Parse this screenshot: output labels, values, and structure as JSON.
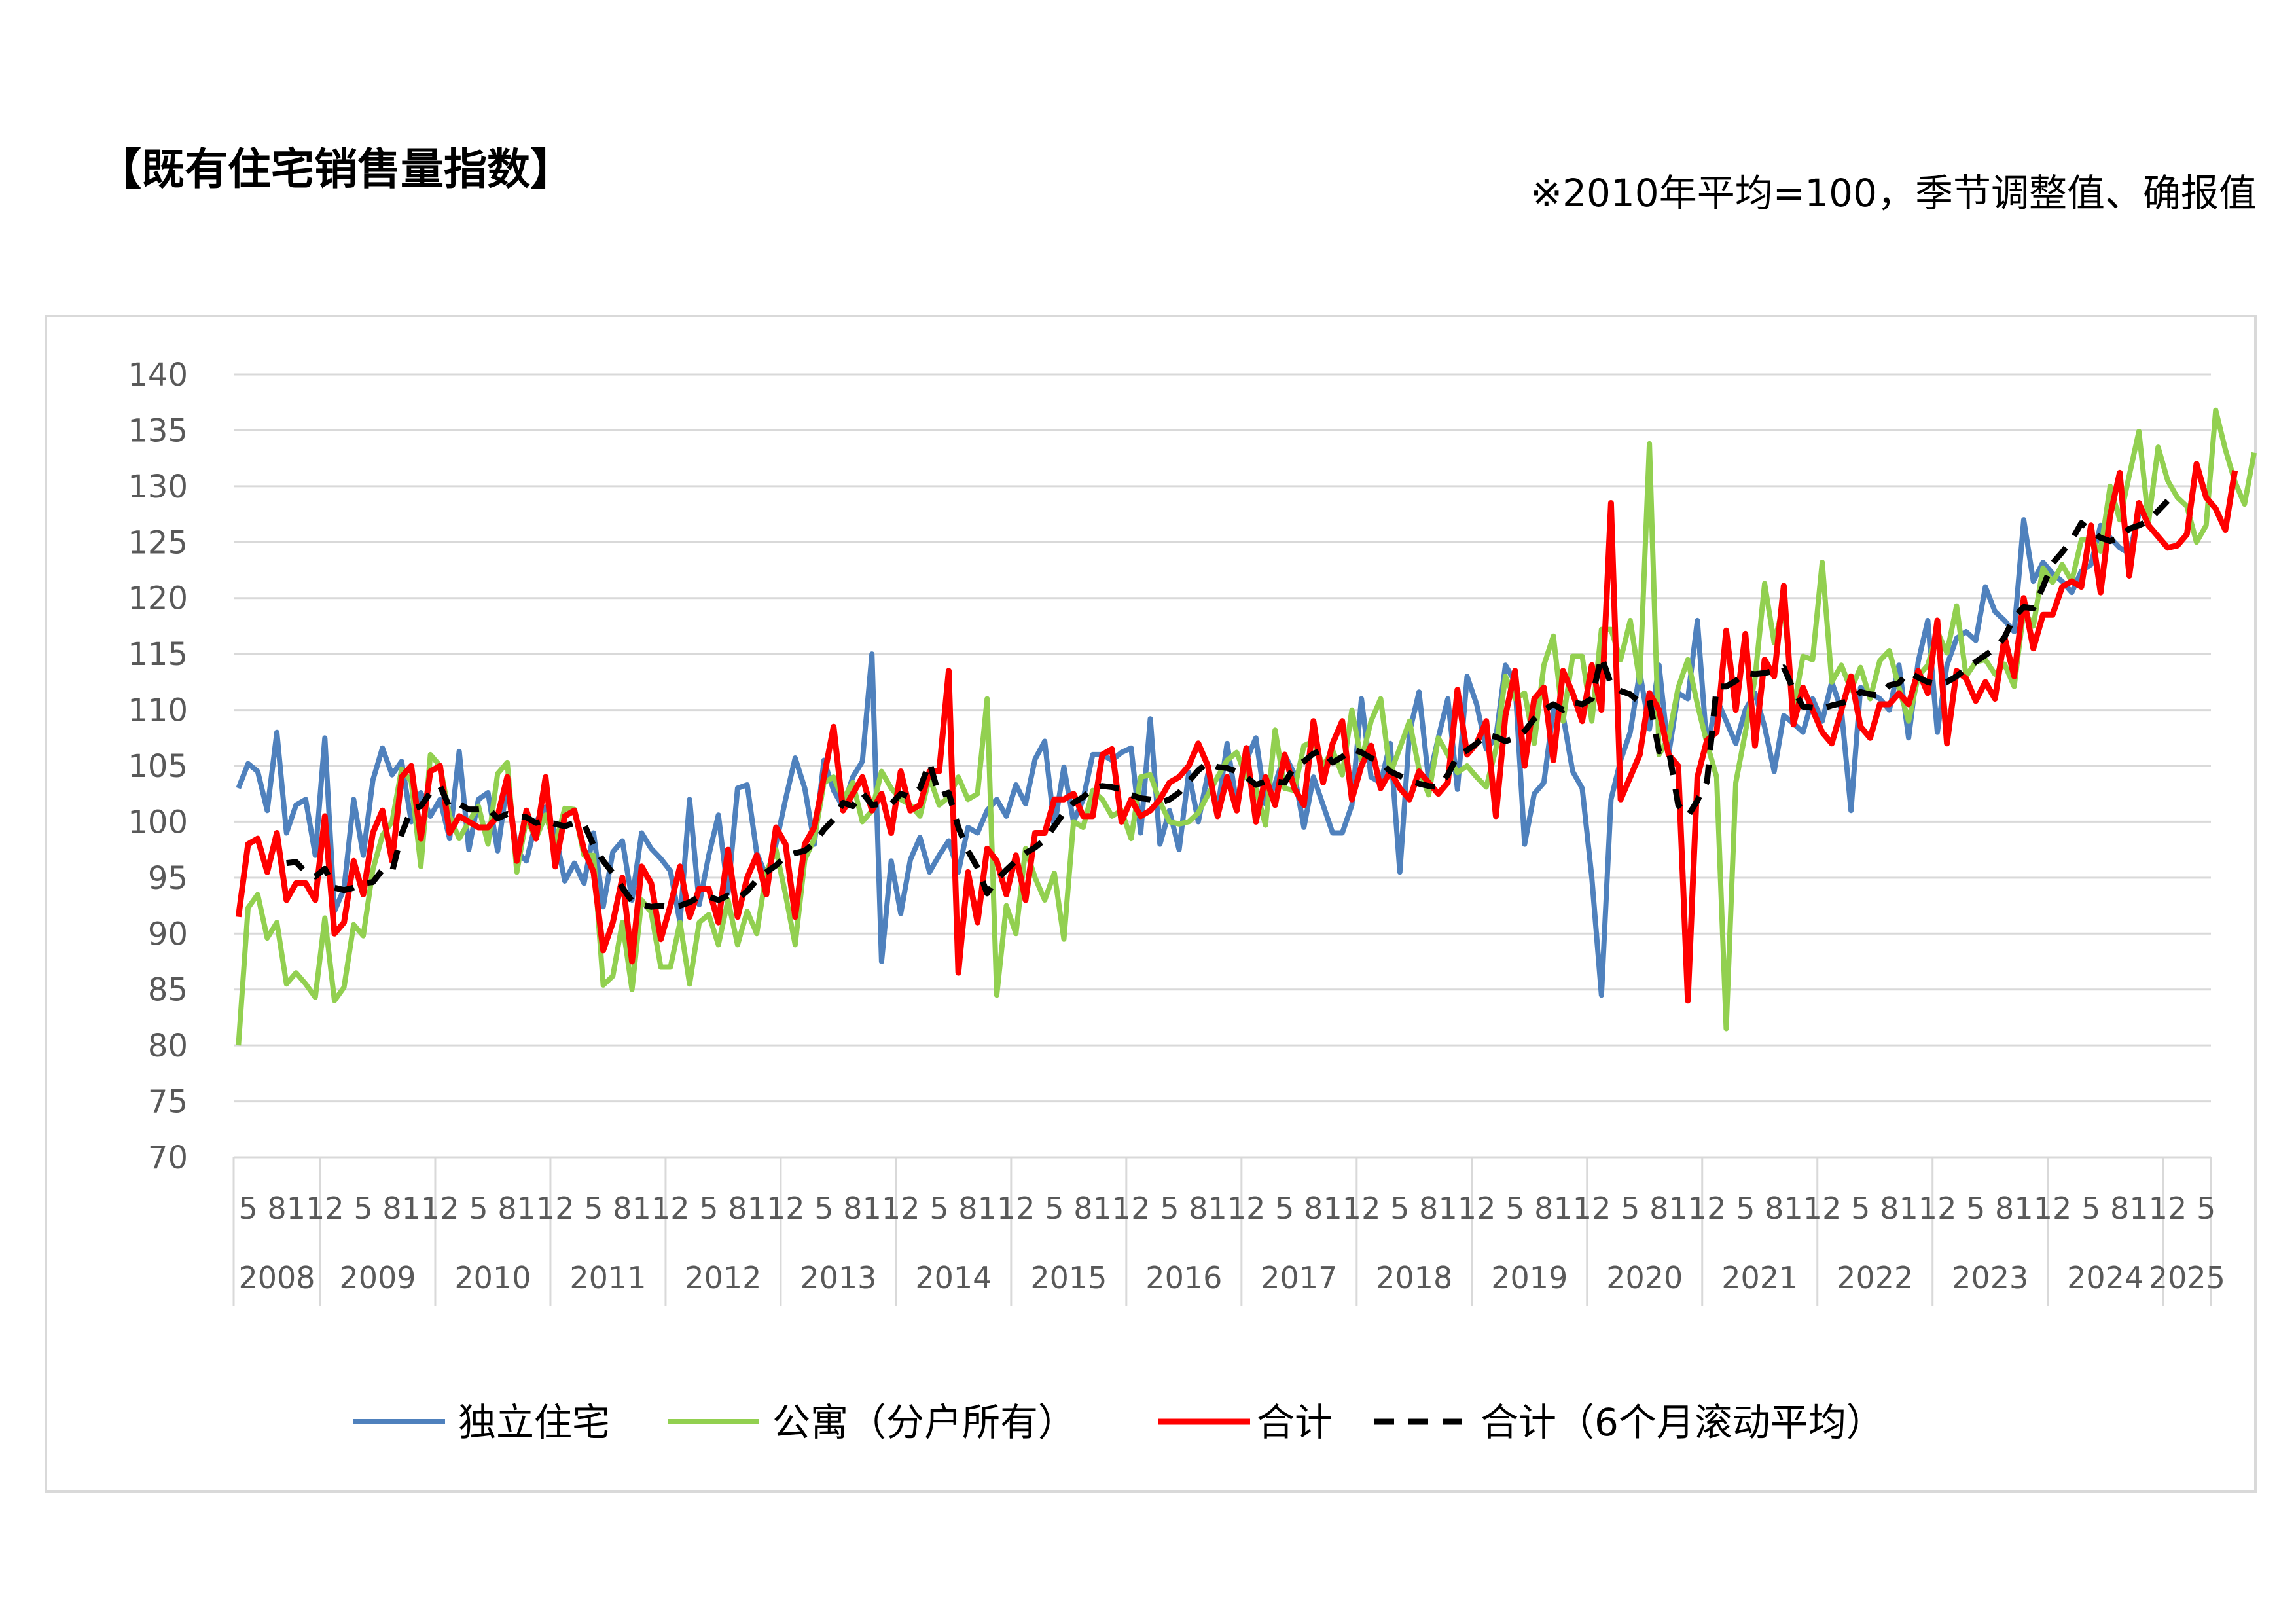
{
  "title": "【既有住宅销售量指数】",
  "note": "※2010年平均=100，季节调整值、确报值",
  "chart_data": {
    "type": "line",
    "y_ticks": [
      70,
      75,
      80,
      85,
      90,
      95,
      100,
      105,
      110,
      115,
      120,
      125,
      130,
      135,
      140
    ],
    "ylim": [
      70,
      140
    ],
    "year_labels": [
      "2008",
      "2009",
      "2010",
      "2011",
      "2012",
      "2013",
      "2014",
      "2015",
      "2016",
      "2017",
      "2018",
      "2019",
      "2020",
      "2021",
      "2022",
      "2023",
      "2024",
      "2025"
    ],
    "month_tick_labels": [
      "2",
      "5",
      "8",
      "11"
    ],
    "month_tick_labels_2025": [
      "2",
      "5"
    ],
    "x_start": "2008-04",
    "x_end": "2025-05",
    "grid": true,
    "legend_position": "bottom",
    "series": [
      {
        "name": "独立住宅",
        "color": "#4f81bd",
        "width": 8,
        "dash": "",
        "values": [
          103,
          105.2,
          104.5,
          101,
          108,
          99,
          101.5,
          102,
          97,
          107.5,
          92,
          94,
          102,
          97,
          103.7,
          106.6,
          104.2,
          105.4,
          100,
          102.6,
          100.5,
          102,
          98.5,
          106.3,
          97.5,
          102,
          102.6,
          97.4,
          103.5,
          97.3,
          96.5,
          100,
          101.3,
          99,
          94.7,
          96.3,
          94.5,
          99,
          92.4,
          97.3,
          98.3,
          93,
          99,
          97.6,
          96.7,
          95.6,
          91,
          102,
          92.6,
          97,
          100.6,
          93.6,
          103,
          103.3,
          97.2,
          95.1,
          98,
          102,
          105.7,
          103,
          98,
          105.5,
          102.8,
          101.3,
          104,
          105.4,
          115,
          87.5,
          96.5,
          91.8,
          96.6,
          98.6,
          95.5,
          97,
          98.3,
          95.5,
          99.5,
          99,
          101,
          102,
          100.5,
          103.3,
          101.6,
          105.6,
          107.2,
          99.5,
          104.9,
          100,
          102,
          106,
          106,
          105.5,
          106.2,
          106.6,
          99,
          109.2,
          98,
          101,
          97.5,
          104.4,
          100,
          104.3,
          101,
          107,
          101.6,
          105.5,
          107.5,
          101.6,
          103.4,
          106,
          104.3,
          99.5,
          104,
          101.5,
          99,
          99,
          101.5,
          111,
          104,
          103.5,
          107,
          95.5,
          108,
          111.6,
          103.7,
          107.5,
          111,
          102.9,
          113,
          110.5,
          106.5,
          107.5,
          114,
          112.5,
          98,
          102.5,
          103.5,
          110,
          109.5,
          104.5,
          103,
          95,
          84.5,
          102,
          105.5,
          108,
          113.4,
          108.3,
          114,
          106,
          111.5,
          111,
          118,
          106.5,
          111,
          109,
          107,
          110,
          111.5,
          108.5,
          104.5,
          109.5,
          108.8,
          108,
          111,
          109,
          112.5,
          110,
          101,
          112,
          111.5,
          111,
          110,
          114,
          107.5,
          114.3,
          118,
          108,
          114,
          116.4,
          117,
          116.2,
          121,
          118.8,
          118,
          117,
          127,
          121.5,
          123.2,
          122.2,
          121.5,
          120.5,
          122.4,
          123,
          126.5,
          125.4,
          124.5,
          124,
          127.5
        ]
      },
      {
        "name": "公寓（分户所有）",
        "color": "#92d050",
        "width": 8,
        "dash": "",
        "values": [
          80,
          92.3,
          93.5,
          89.6,
          91,
          85.5,
          86.5,
          85.5,
          84.3,
          91.4,
          84,
          85.2,
          90.8,
          89.8,
          95.7,
          98.8,
          100,
          104.7,
          103.6,
          96,
          106,
          105,
          100.5,
          98.5,
          100,
          101.4,
          98,
          104.3,
          105.3,
          95.5,
          100.3,
          98.5,
          100.6,
          98,
          101.2,
          101.1,
          97,
          97,
          85.4,
          86.2,
          91,
          85,
          93,
          91.9,
          87,
          87,
          91,
          85.5,
          91,
          91.7,
          89,
          93,
          89,
          92,
          90,
          95.5,
          97.5,
          93.5,
          89,
          96.6,
          98.5,
          103.5,
          104,
          102,
          103.5,
          100,
          101,
          104.5,
          103,
          102,
          101.5,
          100.5,
          104,
          101.5,
          102.2,
          104,
          102,
          102.5,
          111,
          84.5,
          92.5,
          90,
          97.6,
          95,
          93,
          95.4,
          89.5,
          100,
          99.5,
          102.8,
          102,
          100.5,
          101,
          98.5,
          104,
          104.2,
          101.8,
          100,
          99.8,
          100,
          100.8,
          102.4,
          104,
          105.5,
          106.2,
          104,
          103,
          99.7,
          108.2,
          103,
          102.8,
          106.8,
          107.2,
          105,
          106.4,
          104.2,
          110,
          105.5,
          109,
          111,
          104.3,
          106.6,
          109,
          104.7,
          102.4,
          107.5,
          106,
          104.4,
          105,
          104,
          103.1,
          106.5,
          113,
          111,
          111.5,
          107,
          114,
          116.6,
          109,
          114.8,
          114.8,
          109,
          117.2,
          117.2,
          114.5,
          118,
          112.5,
          133.8,
          106,
          107.5,
          112,
          114.5,
          110.5,
          107,
          104,
          81.5,
          103.5,
          108,
          112.8,
          121.3,
          116,
          119.5,
          110,
          114.8,
          114.5,
          123.2,
          112.5,
          114,
          111.8,
          113.8,
          111,
          114.4,
          115.3,
          112,
          109,
          113,
          114,
          117,
          115.1,
          119.3,
          113,
          114.3,
          114.5,
          113.2,
          114.1,
          112.1,
          118.9,
          117.5,
          122.7,
          121.4,
          123,
          121.5,
          125.2,
          125.3,
          124.2,
          130,
          127,
          131,
          134.9,
          126.8,
          133.5,
          130.5,
          129,
          128.2,
          125,
          126.5,
          136.8,
          133.3,
          130.4,
          128.4,
          133
        ]
      },
      {
        "name": "合计",
        "color": "#ff0000",
        "width": 9,
        "dash": "",
        "values": [
          91.5,
          98,
          98.5,
          95.5,
          99,
          93,
          94.5,
          94.5,
          93,
          100.5,
          90,
          91,
          96.5,
          93.5,
          99,
          101,
          96.5,
          104,
          105,
          98.5,
          104.5,
          105,
          99,
          100.5,
          100,
          99.5,
          99.5,
          100.5,
          104,
          96.5,
          101,
          98.5,
          104,
          96,
          100.5,
          101,
          97.5,
          95.5,
          88.5,
          91,
          95,
          87.5,
          96,
          94.5,
          89.5,
          92.5,
          96,
          91.5,
          94,
          94,
          91,
          97.5,
          91.5,
          95,
          97,
          93.5,
          99.5,
          98,
          91.5,
          98,
          99.5,
          104,
          108.5,
          101,
          102.5,
          104,
          101,
          102.5,
          99,
          104.5,
          101,
          101.5,
          104.5,
          104.5,
          113.5,
          86.5,
          95.5,
          91,
          97.6,
          96.5,
          93.5,
          97,
          93,
          99,
          99,
          102,
          102,
          102.5,
          100.5,
          100.5,
          106,
          106.5,
          100,
          102,
          100.5,
          101,
          102,
          103.5,
          104,
          105,
          107,
          105,
          100.5,
          104,
          101,
          106.6,
          100,
          104,
          101.5,
          106,
          103,
          101.5,
          109,
          103.5,
          107,
          109,
          102,
          105,
          106.8,
          103,
          104.5,
          103,
          102,
          104.5,
          103.5,
          102.5,
          103.5,
          111.8,
          106,
          107,
          109,
          100.5,
          109.5,
          113.5,
          105,
          111,
          112,
          105.5,
          113.5,
          111.5,
          109,
          114,
          110,
          128.5,
          102,
          104,
          106,
          111.5,
          110,
          106,
          105,
          84,
          104,
          107.3,
          108,
          117.1,
          110,
          116.8,
          106.8,
          114.5,
          113,
          121.1,
          108.7,
          112,
          110,
          108,
          107,
          110,
          113,
          108.5,
          107.5,
          110.5,
          110.5,
          111.5,
          110.5,
          113.5,
          111.5,
          118,
          107,
          113.5,
          112.8,
          110.8,
          112.5,
          111,
          116.5,
          113,
          120,
          115.5,
          118.5,
          118.5,
          121,
          121.5,
          121,
          126.5,
          120.5,
          127.4,
          131.2,
          122,
          128.5,
          126.5,
          125.5,
          124.5,
          124.7,
          125.7,
          132,
          129,
          128,
          126.1,
          131.4
        ]
      },
      {
        "name": "合计（6个月滚动平均）",
        "color": "#000000",
        "width": 9,
        "dash": "30,22",
        "values": [
          null,
          null,
          null,
          null,
          null,
          96.3,
          96.4,
          95.5,
          95.1,
          95.8,
          94.1,
          93.9,
          94.1,
          94.5,
          94.6,
          95.7,
          95.5,
          98.9,
          101.1,
          101.4,
          102.6,
          103.2,
          101.3,
          101.6,
          101.1,
          101.1,
          101.2,
          100.3,
          100.7,
          100.5,
          100.4,
          99.9,
          100.1,
          99.8,
          99.6,
          99.9,
          99.8,
          97.9,
          96.5,
          95.4,
          94.1,
          92.9,
          92.6,
          92.4,
          92.5,
          92.4,
          92.5,
          92.8,
          93.3,
          93.3,
          93,
          93.4,
          93.1,
          93.8,
          94.8,
          95.5,
          96.1,
          96.9,
          97.2,
          97.4,
          98.1,
          99.3,
          100.2,
          101.7,
          101.4,
          102.6,
          101.5,
          101.6,
          101.6,
          102.5,
          102.2,
          103,
          105.3,
          102.3,
          102.6,
          99.5,
          97.4,
          95.9,
          93.6,
          94.8,
          95.7,
          96.5,
          97.2,
          97.7,
          98.4,
          99.6,
          100.8,
          101.7,
          102.2,
          103,
          103.2,
          103.1,
          102.9,
          102.4,
          102.1,
          102,
          101.7,
          102,
          102.6,
          103.6,
          104.6,
          105.3,
          104.9,
          104.8,
          104.5,
          104,
          103.3,
          103.6,
          103.6,
          103.5,
          104.9,
          105.4,
          106.1,
          106.4,
          105.3,
          105.8,
          106.5,
          106.2,
          105.7,
          105.3,
          104.5,
          104.1,
          103.7,
          103.4,
          103.2,
          103.1,
          104.2,
          105.9,
          106.4,
          107,
          107.8,
          107.6,
          107.2,
          107.5,
          108.1,
          109.2,
          110,
          110.5,
          110,
          110.7,
          110.5,
          111,
          114.8,
          112.3,
          111.7,
          111.4,
          110.7,
          110.9,
          106.3,
          106.5,
          101.5,
          100.5,
          101.9,
          103.6,
          112.1,
          112.1,
          112.6,
          113.3,
          113.2,
          113.3,
          113.5,
          113.8,
          111.8,
          110.3,
          110.2,
          110.1,
          110.4,
          110.6,
          110.9,
          111.6,
          111.4,
          111.3,
          112.2,
          112.4,
          113.4,
          112.9,
          112.5,
          112.3,
          112.5,
          113,
          113.7,
          114.3,
          114.9,
          115.5,
          116.5,
          118.3,
          119.2,
          119.1,
          121,
          123.1,
          124.1,
          125.2,
          126.7,
          126,
          125.4,
          125.1,
          125.4,
          126.2,
          126.5,
          126.9,
          127.8,
          128.7
        ]
      }
    ]
  }
}
